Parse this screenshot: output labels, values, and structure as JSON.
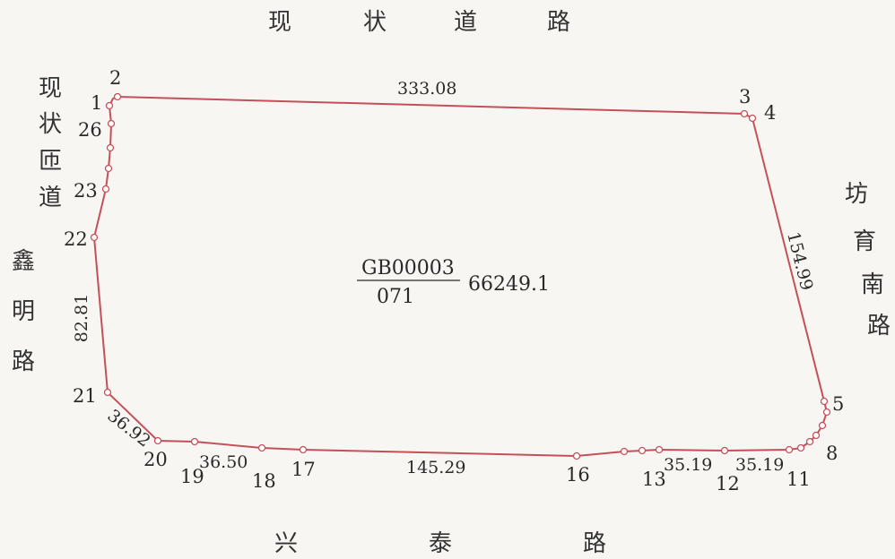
{
  "roads": {
    "top": [
      "现",
      "状",
      "道",
      "路"
    ],
    "left_upper": [
      "现",
      "状",
      "匝",
      "道"
    ],
    "left_lower": [
      "鑫",
      "明",
      "路"
    ],
    "right": [
      "坊",
      "育",
      "南",
      "路"
    ],
    "bottom": [
      "兴",
      "泰",
      "路"
    ]
  },
  "points": {
    "p1": "1",
    "p2": "2",
    "p3": "3",
    "p4": "4",
    "p5": "5",
    "p8": "8",
    "p11": "11",
    "p12": "12",
    "p13": "13",
    "p16": "16",
    "p17": "17",
    "p18": "18",
    "p19": "19",
    "p20": "20",
    "p21": "21",
    "p22": "22",
    "p23": "23",
    "p26": "26"
  },
  "lengths": {
    "top": "333.08",
    "right": "154.99",
    "left": "82.81",
    "bottom_left": "36.92",
    "bottom_a": "36.50",
    "bottom_mid": "145.29",
    "bottom_b": "35.19",
    "bottom_c": "35.19"
  },
  "parcel": {
    "code_top": "GB00003",
    "code_bottom": "071",
    "area": "66249.1"
  },
  "colors": {
    "boundary": "#c5505a",
    "background": "#f7f6f2"
  }
}
